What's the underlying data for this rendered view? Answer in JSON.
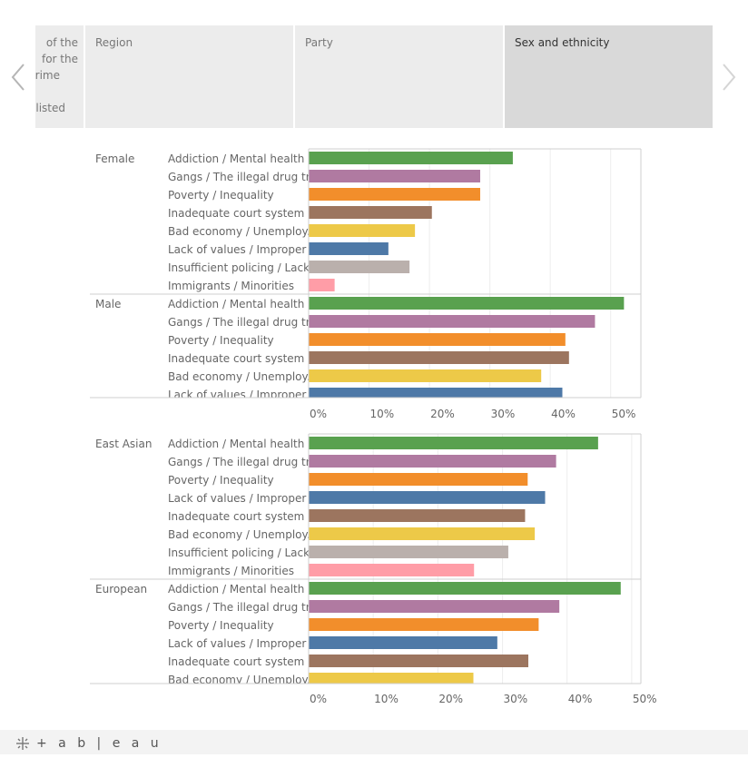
{
  "tabs": [
    {
      "lines": [
        "of the",
        "for the",
        "rime",
        "",
        "listed"
      ],
      "active": false
    },
    {
      "label": "Region",
      "active": false
    },
    {
      "label": "Party",
      "active": false
    },
    {
      "label": "Sex and ethnicity",
      "active": true
    }
  ],
  "footer": {
    "logo_text": "+ a b | e a u",
    "icon": "tableau-logo-icon"
  },
  "colors": {
    "Addiction / Mental health ..": "#59a14f",
    "Gangs / The illegal drug tr..": "#b07aa1",
    "Poverty / Inequality": "#f28e2b",
    "Inadequate court system": "#9c755f",
    "Bad economy / Unemploy..": "#edc948",
    "Lack of values / Improper ..": "#4e79a7",
    "Insufficient policing / Lack..": "#bab0ac",
    "Immigrants / Minorities": "#ff9da7"
  },
  "chart_data": [
    {
      "type": "bar",
      "orientation": "horizontal",
      "xlim": [
        0,
        55
      ],
      "xticks": [
        0,
        10,
        20,
        30,
        40,
        50
      ],
      "xtick_labels": [
        "0%",
        "10%",
        "20%",
        "30%",
        "40%",
        "50%"
      ],
      "groups": [
        {
          "name": "Female",
          "bars": [
            {
              "label": "Addiction / Mental health ..",
              "value": 33.8
            },
            {
              "label": "Gangs / The illegal drug tr..",
              "value": 28.4
            },
            {
              "label": "Poverty / Inequality",
              "value": 28.4
            },
            {
              "label": "Inadequate court system",
              "value": 20.4
            },
            {
              "label": "Bad economy / Unemploy..",
              "value": 17.6
            },
            {
              "label": "Lack of values / Improper ..",
              "value": 13.2
            },
            {
              "label": "Insufficient policing / Lack..",
              "value": 16.7
            },
            {
              "label": "Immigrants / Minorities",
              "value": 4.3
            }
          ]
        },
        {
          "name": "Male",
          "bars": [
            {
              "label": "Addiction / Mental health ..",
              "value": 52.2
            },
            {
              "label": "Gangs / The illegal drug tr..",
              "value": 47.4
            },
            {
              "label": "Poverty / Inequality",
              "value": 42.5
            },
            {
              "label": "Inadequate court system",
              "value": 43.1
            },
            {
              "label": "Bad economy / Unemploy..",
              "value": 38.5
            },
            {
              "label": "Lack of values / Improper ..",
              "value": 42.0
            }
          ]
        }
      ]
    },
    {
      "type": "bar",
      "orientation": "horizontal",
      "xlim": [
        0,
        51
      ],
      "xticks": [
        0,
        10,
        20,
        30,
        40,
        50
      ],
      "xtick_labels": [
        "0%",
        "10%",
        "20%",
        "30%",
        "40%",
        "50%"
      ],
      "groups": [
        {
          "name": "East Asian",
          "bars": [
            {
              "label": "Addiction / Mental health ..",
              "value": 44.8
            },
            {
              "label": "Gangs / The illegal drug tr..",
              "value": 38.3
            },
            {
              "label": "Poverty / Inequality",
              "value": 33.9
            },
            {
              "label": "Lack of values / Improper ..",
              "value": 36.6
            },
            {
              "label": "Inadequate court system",
              "value": 33.5
            },
            {
              "label": "Bad economy / Unemploy..",
              "value": 35.0
            },
            {
              "label": "Insufficient policing / Lack..",
              "value": 30.9
            },
            {
              "label": "Immigrants / Minorities",
              "value": 25.6
            }
          ]
        },
        {
          "name": "European",
          "bars": [
            {
              "label": "Addiction / Mental health ..",
              "value": 48.3
            },
            {
              "label": "Gangs / The illegal drug tr..",
              "value": 38.8
            },
            {
              "label": "Poverty / Inequality",
              "value": 35.6
            },
            {
              "label": "Lack of values / Improper ..",
              "value": 29.2
            },
            {
              "label": "Inadequate court system",
              "value": 34.0
            },
            {
              "label": "Bad economy / Unemploy..",
              "value": 25.5
            }
          ]
        }
      ]
    }
  ]
}
